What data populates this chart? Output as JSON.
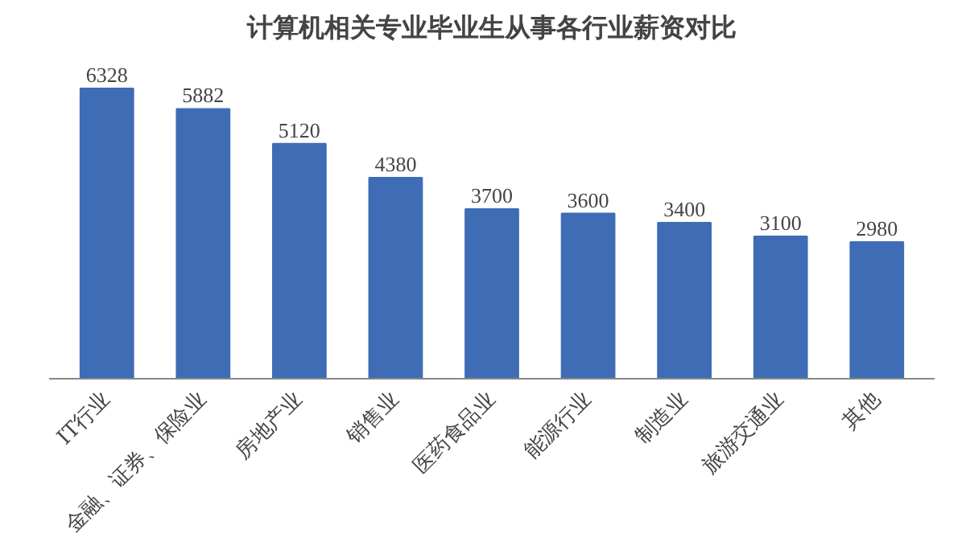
{
  "chart_data": {
    "type": "bar",
    "title": "计算机相关专业毕业生从事各行业薪资对比",
    "categories": [
      "IT行业",
      "金融、证券、保险业",
      "房地产业",
      "销售业",
      "医药食品业",
      "能源行业",
      "制造业",
      "旅游交通业",
      "其他"
    ],
    "values": [
      6328,
      5882,
      5120,
      4380,
      3700,
      3600,
      3400,
      3100,
      2980
    ],
    "color": "#3f6db5",
    "data_labels": true
  }
}
